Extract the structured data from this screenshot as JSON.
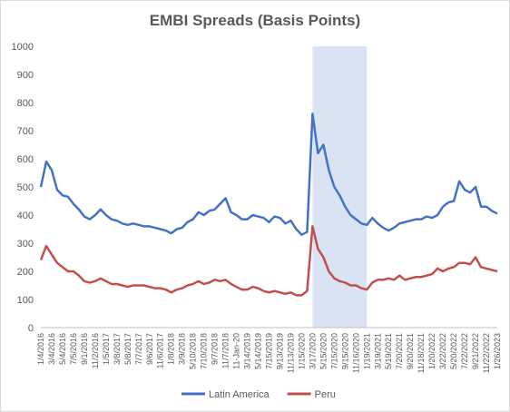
{
  "chart_data": {
    "type": "line",
    "title": "EMBI Spreads (Basis Points)",
    "categories": [
      "1/4/2016",
      null,
      "3/4/2016",
      null,
      "5/4/2016",
      null,
      "7/5/2016",
      null,
      "9/1/2016",
      null,
      "11/2/2016",
      null,
      "1/5/2017",
      null,
      "3/8/2017",
      null,
      "5/8/2017",
      null,
      "7/7/2017",
      null,
      "9/6/2017",
      null,
      "11/6/2017",
      null,
      "1/8/2018",
      null,
      "3/9/2018",
      null,
      "5/10/2018",
      null,
      "7/10/2018",
      null,
      "9/7/2018",
      null,
      "11/7/2018",
      null,
      "11-Jan-20",
      null,
      "3/14/2019",
      null,
      "5/14/2019",
      null,
      "7/15/2019",
      null,
      "9/13/2019",
      null,
      "11/13/2019",
      null,
      "1/15/2020",
      null,
      "3/17/2020",
      null,
      "5/15/2020",
      null,
      "7/15/2020",
      null,
      "9/15/2020",
      null,
      "11/16/2020",
      null,
      "1/19/2021",
      null,
      "3/19/2021",
      null,
      "5/19/2021",
      null,
      "7/20/2021",
      null,
      "9/20/2021",
      null,
      "11/18/2021",
      null,
      "1/20/2022",
      null,
      "3/22/2022",
      null,
      "5/20/2022",
      null,
      "7/22/2022",
      null,
      "9/21/2022",
      null,
      "11/22/2022",
      null,
      "1/26/2023"
    ],
    "series": [
      {
        "name": "Latin America",
        "color": "#4472c4",
        "values": [
          500,
          590,
          560,
          490,
          470,
          465,
          440,
          420,
          395,
          385,
          400,
          420,
          400,
          385,
          380,
          370,
          365,
          370,
          365,
          360,
          360,
          355,
          350,
          345,
          335,
          350,
          355,
          375,
          385,
          410,
          400,
          415,
          420,
          440,
          460,
          410,
          400,
          385,
          385,
          400,
          395,
          390,
          375,
          395,
          390,
          370,
          380,
          350,
          330,
          340,
          760,
          620,
          650,
          560,
          500,
          470,
          430,
          400,
          385,
          370,
          365,
          390,
          370,
          355,
          345,
          355,
          370,
          375,
          380,
          385,
          385,
          395,
          390,
          400,
          430,
          445,
          450,
          520,
          490,
          480,
          500,
          430,
          430,
          415,
          405
        ]
      },
      {
        "name": "Peru",
        "color": "#c0504d",
        "values": [
          240,
          290,
          260,
          230,
          215,
          200,
          200,
          185,
          165,
          160,
          165,
          175,
          165,
          155,
          155,
          150,
          145,
          150,
          150,
          150,
          145,
          140,
          140,
          135,
          125,
          135,
          140,
          150,
          155,
          165,
          155,
          160,
          170,
          165,
          170,
          155,
          145,
          135,
          135,
          145,
          140,
          130,
          125,
          130,
          125,
          120,
          125,
          115,
          115,
          130,
          360,
          280,
          250,
          200,
          175,
          165,
          160,
          150,
          150,
          140,
          135,
          160,
          170,
          170,
          175,
          170,
          185,
          170,
          175,
          180,
          180,
          185,
          190,
          210,
          200,
          210,
          215,
          230,
          230,
          225,
          250,
          215,
          210,
          205,
          200
        ]
      }
    ],
    "shaded_range": {
      "start": "3/17/2020",
      "end": "1/19/2021",
      "color": "#dae3f3"
    },
    "ylim": [
      0,
      1000
    ],
    "yticks": [
      0,
      100,
      200,
      300,
      400,
      500,
      600,
      700,
      800,
      900,
      1000
    ],
    "grid": false
  }
}
